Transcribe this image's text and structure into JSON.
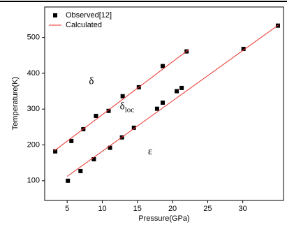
{
  "chart_data": {
    "type": "scatter",
    "xlabel": "Pressure(GPa)",
    "ylabel": "Temperature(K)",
    "xlim": [
      1.8,
      35.8
    ],
    "ylim": [
      45,
      585
    ],
    "xticks": [
      5,
      10,
      15,
      20,
      25,
      30
    ],
    "yticks": [
      100,
      200,
      300,
      400,
      500
    ],
    "legend": "upper left",
    "series": [
      {
        "name": "Observed[12]",
        "color": "#000000",
        "kind": "scatter",
        "x": [
          3.3,
          5.6,
          7.3,
          9.1,
          10.9,
          12.9,
          15.2,
          18.6,
          22.0,
          5.1,
          6.9,
          8.8,
          11.1,
          12.8,
          14.5,
          17.8,
          18.6,
          20.6,
          21.3,
          30.1,
          35.0
        ],
        "values": [
          182,
          211,
          244,
          281,
          295,
          336,
          361,
          420,
          461,
          100,
          127,
          160,
          192,
          221,
          248,
          301,
          318,
          350,
          359,
          468,
          533
        ]
      },
      {
        "name": "Calculated",
        "color": "#e8302a",
        "kind": "line",
        "x": [
          3.2,
          22.3,
          null,
          5.0,
          35.1
        ],
        "values": [
          184,
          466,
          null,
          112,
          535
        ]
      }
    ],
    "annotations": [
      {
        "text": "δ",
        "x": 8.1,
        "y": 375
      },
      {
        "text": "δ",
        "sub": "loc",
        "x": 12.5,
        "y": 305
      },
      {
        "text": "ε",
        "x": 16.5,
        "y": 180
      }
    ]
  }
}
